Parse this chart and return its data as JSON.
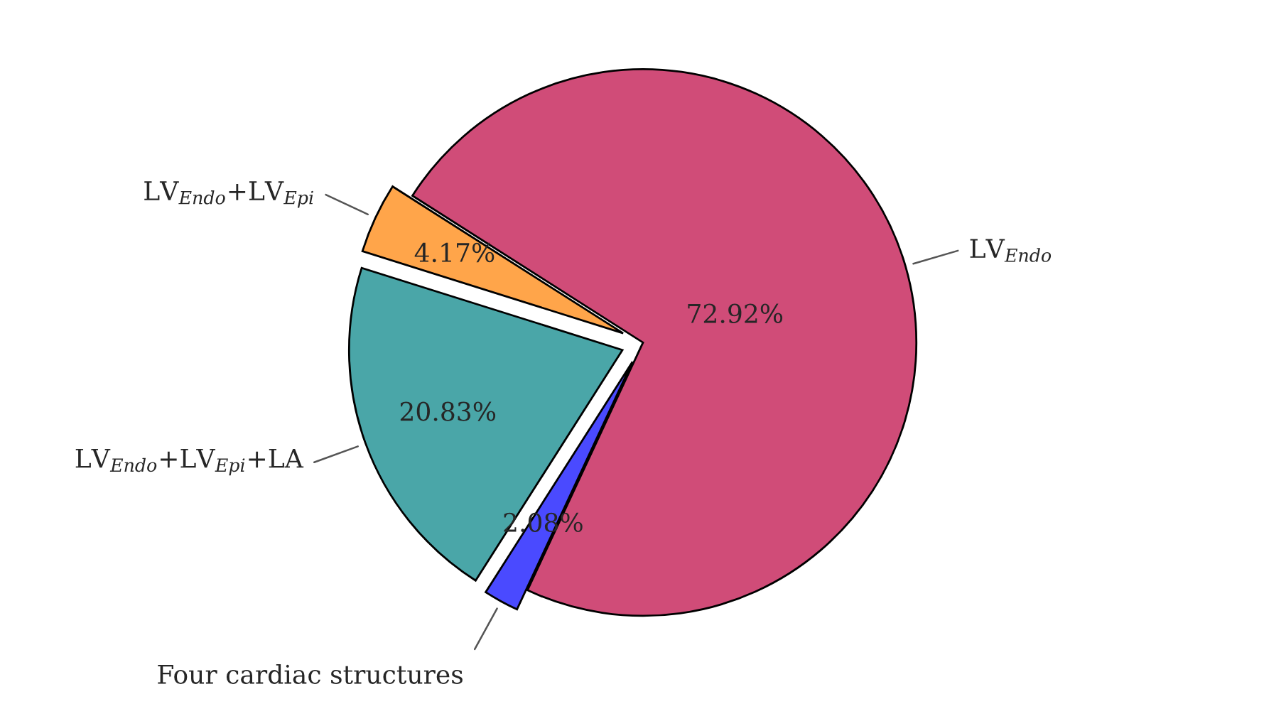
{
  "chart_data": {
    "type": "pie",
    "categories": [
      "LV$_{Endo}$",
      "LV$_{Endo}$+LV$_{Epi}$",
      "LV$_{Endo}$+LV$_{Epi}$+LA",
      "Four cardiac structures"
    ],
    "values": [
      72.92,
      4.17,
      20.83,
      2.08
    ],
    "colors": [
      "#d04c78",
      "#ffa54a",
      "#4aa6a8",
      "#4a4aff"
    ],
    "value_labels": [
      "72.92%",
      "4.17%",
      "20.83%",
      "2.08%"
    ]
  }
}
